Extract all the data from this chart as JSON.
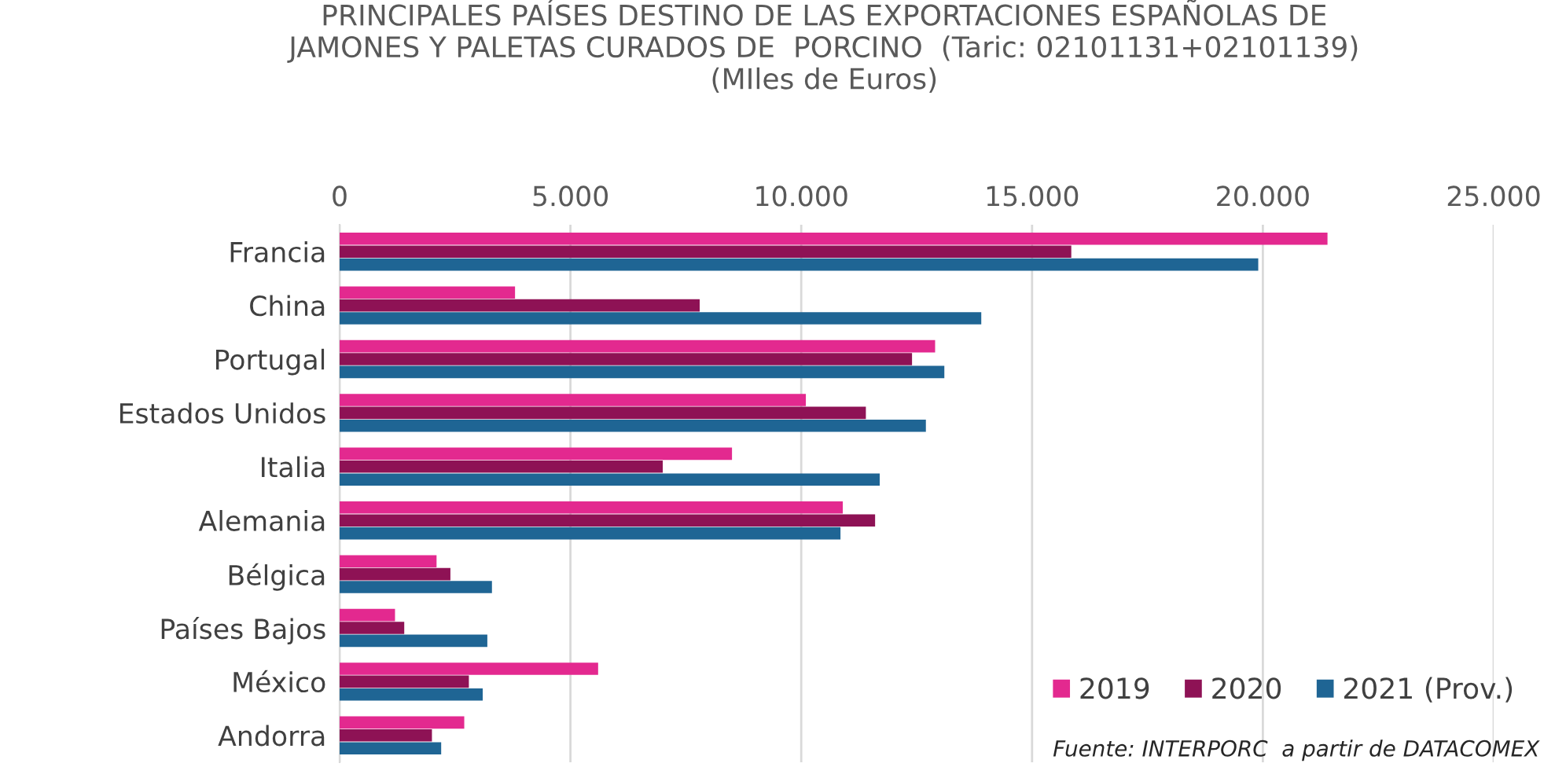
{
  "chart_data": {
    "type": "bar",
    "orientation": "horizontal",
    "title": "PRINCIPALES PAÍSES DESTINO DE LAS EXPORTACIONES ESPAÑOLAS DE\nJAMONES Y PALETAS CURADOS DE  PORCINO  (Taric: 02101131+02101139)\n(MIles de Euros)",
    "categories": [
      "Francia",
      "China",
      "Portugal",
      "Estados Unidos",
      "Italia",
      "Alemania",
      "Bélgica",
      "Países Bajos",
      "México",
      "Andorra"
    ],
    "series": [
      {
        "name": "2019",
        "color": "#e3298f",
        "values": [
          21400,
          3800,
          12900,
          10100,
          8500,
          10900,
          2100,
          1200,
          5600,
          2700
        ]
      },
      {
        "name": "2020",
        "color": "#8e1255",
        "values": [
          15850,
          7800,
          12400,
          11400,
          7000,
          11600,
          2400,
          1400,
          2800,
          2000
        ]
      },
      {
        "name": "2021 (Prov.)",
        "color": "#1f6594",
        "values": [
          19900,
          13900,
          13100,
          12700,
          11700,
          10850,
          3300,
          3200,
          3100,
          2200
        ]
      }
    ],
    "xlim": [
      0,
      25000
    ],
    "xticks": [
      {
        "value": 0,
        "label": "0"
      },
      {
        "value": 5000,
        "label": "5.000"
      },
      {
        "value": 10000,
        "label": "10.000"
      },
      {
        "value": 15000,
        "label": "15.000"
      },
      {
        "value": 20000,
        "label": "20.000"
      },
      {
        "value": 25000,
        "label": "25.000"
      }
    ],
    "grid": "x",
    "legend": "bottom right",
    "annotations": [
      "Fuente: INTERPORC  a partir de DATACOMEX"
    ]
  }
}
